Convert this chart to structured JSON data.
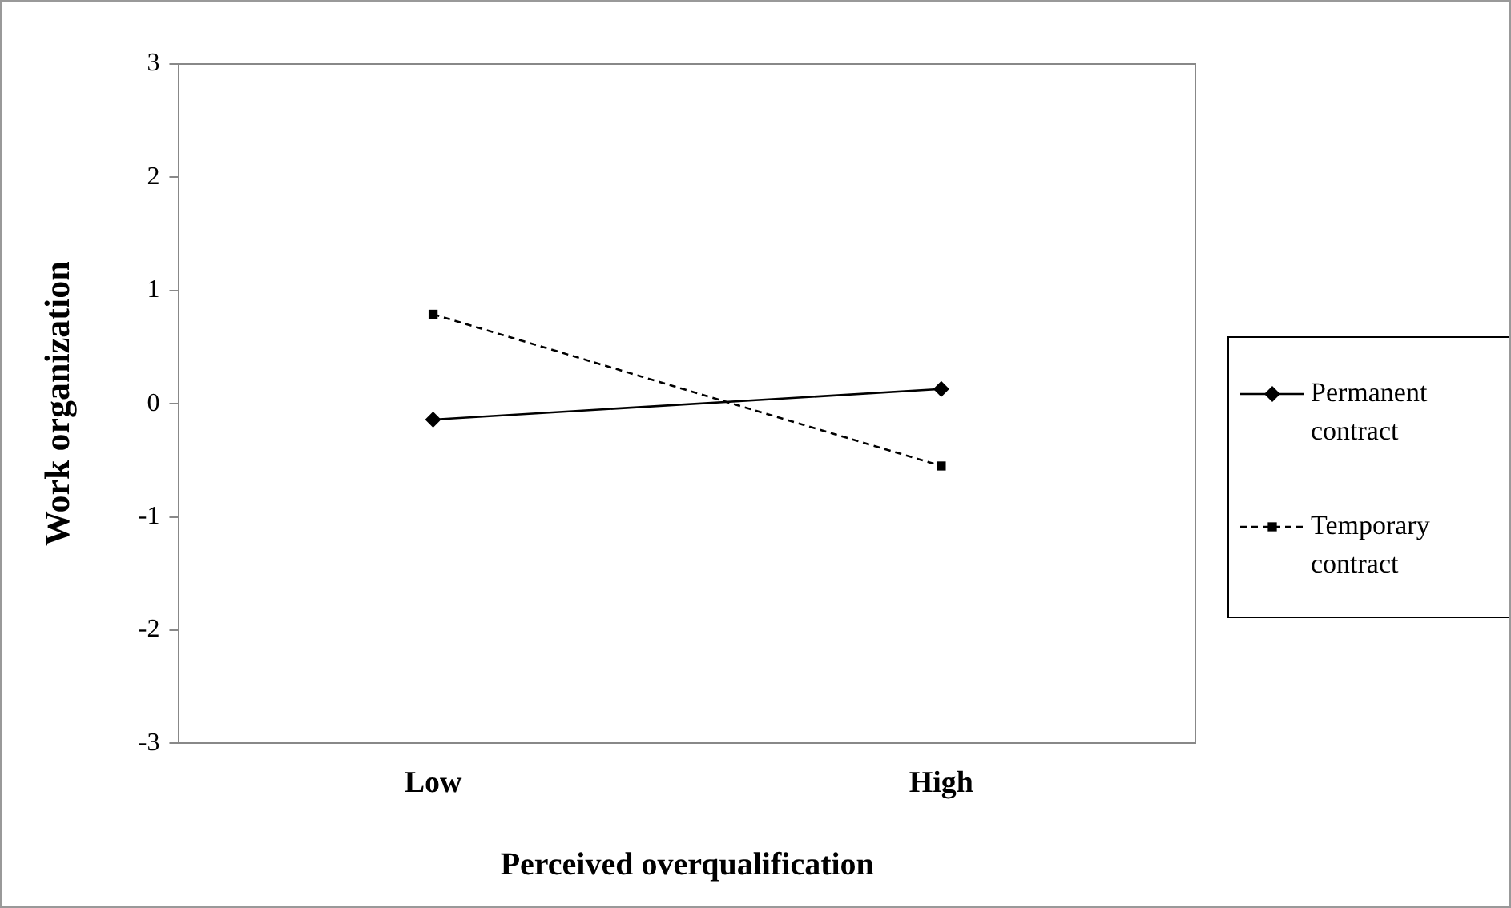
{
  "chart_data": {
    "type": "line",
    "xlabel": "Perceived overqualification",
    "ylabel": "Work organization",
    "categories": [
      "Low",
      "High"
    ],
    "series": [
      {
        "name": "Permanent contract",
        "color": "#000000",
        "values": [
          -0.14,
          0.13
        ],
        "marker": "diamond",
        "line_style": "solid"
      },
      {
        "name": "Temporary contract",
        "color": "#000000",
        "values": [
          0.79,
          -0.55
        ],
        "marker": "square",
        "line_style": "dashed"
      }
    ],
    "ylim": [
      -3,
      3
    ],
    "yticks": [
      -3,
      -2,
      -1,
      0,
      1,
      2,
      3
    ],
    "grid": false,
    "legend": "right"
  }
}
